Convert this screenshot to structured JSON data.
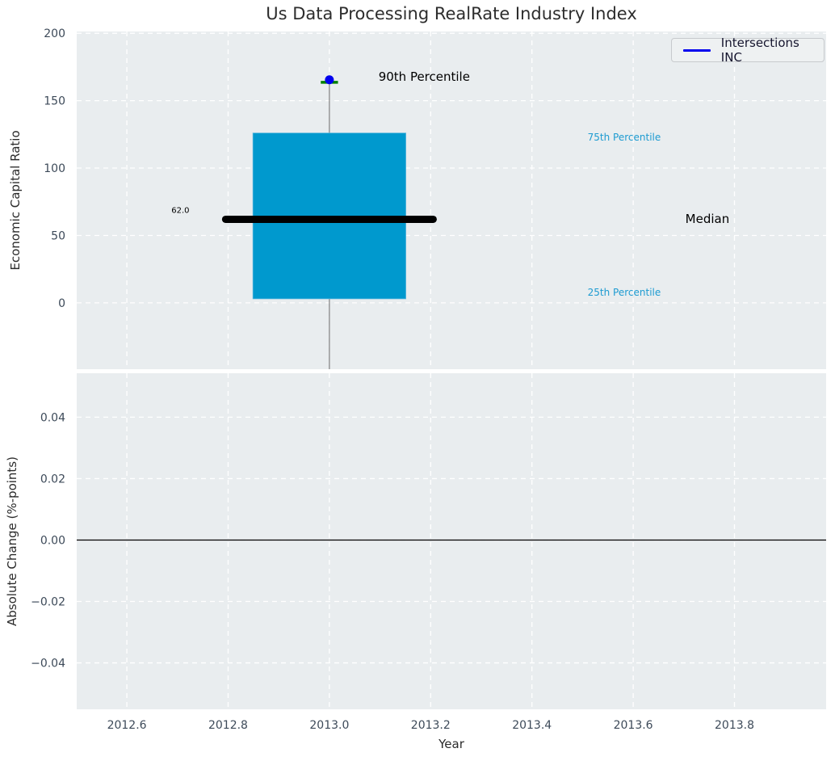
{
  "chart": {
    "title": "Us Data Processing RealRate Industry Index",
    "legend": {
      "label": "Intersections INC",
      "line_color": "#0000ee"
    },
    "colors": {
      "axes_bg": "#e9edef",
      "grid": "#ffffff",
      "box_fill": "#0099ce",
      "box_edge": "#57b5dd",
      "median": "#000000",
      "whisker": "#808080",
      "cap": "#008000",
      "dot": "#0000ee",
      "zero_line": "#000000",
      "tick_label": "#3d4a59",
      "text": "#2b2b2b",
      "percentile_label": "#1d9bd1"
    }
  },
  "chart_data": {
    "type": "boxplot",
    "title": "Us Data Processing RealRate Industry Index",
    "xlabel": "Year",
    "xlim": [
      2012.501,
      2013.981
    ],
    "xticks": [
      {
        "v": 2012.6,
        "label": "2012.6"
      },
      {
        "v": 2012.8,
        "label": "2012.8"
      },
      {
        "v": 2013.0,
        "label": "2013.0"
      },
      {
        "v": 2013.2,
        "label": "2013.2"
      },
      {
        "v": 2013.4,
        "label": "2013.4"
      },
      {
        "v": 2013.6,
        "label": "2013.6"
      },
      {
        "v": 2013.8,
        "label": "2013.8"
      }
    ],
    "grid": "dashed-white",
    "legend_position": "upper right",
    "panels": [
      {
        "ylabel": "Economic Capital Ratio",
        "ylim": [
          -49.2,
          201.3
        ],
        "yticks": [
          {
            "v": 0,
            "label": "0"
          },
          {
            "v": 50,
            "label": "50"
          },
          {
            "v": 100,
            "label": "100"
          },
          {
            "v": 150,
            "label": "150"
          },
          {
            "v": 200,
            "label": "200"
          }
        ],
        "box": {
          "x": 2013.0,
          "q1": 3,
          "median": 62.0,
          "q3": 126,
          "p90": 163.6,
          "box_halfwidth": 0.151,
          "median_halfwidth": 0.205,
          "cap_halfwidth": 0.017,
          "median_label": "62.0"
        },
        "series": [
          {
            "name": "Intersections INC",
            "x": [
              2013.0
            ],
            "y": [
              165.5
            ]
          }
        ],
        "annotations": [
          {
            "text": "62.0",
            "x": 2012.688,
            "y": 69,
            "color": "#000000",
            "size": 10
          },
          {
            "text": "90th Percentile",
            "x": 2013.097,
            "y": 168,
            "color": "#000000",
            "size": 15
          },
          {
            "text": "75th Percentile",
            "x": 2013.51,
            "y": 123,
            "color": "#1d9bd1",
            "size": 12
          },
          {
            "text": "Median",
            "x": 2013.703,
            "y": 62.5,
            "color": "#000000",
            "size": 15
          },
          {
            "text": "25th Percentile",
            "x": 2013.51,
            "y": 8,
            "color": "#1d9bd1",
            "size": 12
          }
        ]
      },
      {
        "ylabel": "Absolute Change (%-points)",
        "ylim": [
          -0.0551,
          0.0543
        ],
        "yticks": [
          {
            "v": 0.04,
            "label": "0.04"
          },
          {
            "v": 0.02,
            "label": "0.02"
          },
          {
            "v": 0.0,
            "label": "0.00"
          },
          {
            "v": -0.02,
            "label": "−0.02"
          },
          {
            "v": -0.04,
            "label": "−0.04"
          }
        ],
        "zero_line": 0.0,
        "annotations": []
      }
    ]
  }
}
